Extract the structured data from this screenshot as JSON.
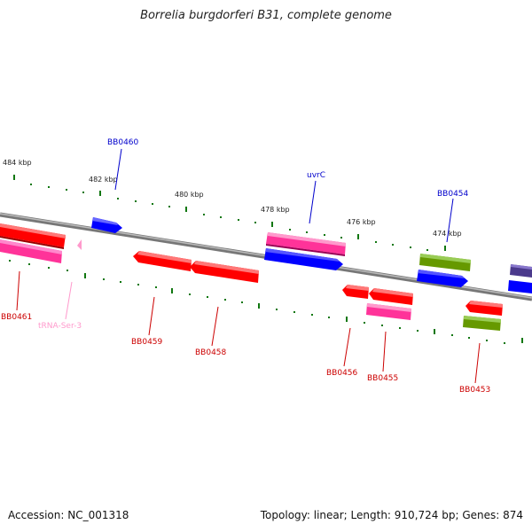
{
  "title": "Borrelia burgdorferi B31, complete genome",
  "footer": {
    "accession": "Accession: NC_001318",
    "summary": "Topology: linear; Length: 910,724 bp; Genes: 874"
  },
  "ticks": [
    "484 kbp",
    "482 kbp",
    "480 kbp",
    "478 kbp",
    "476 kbp",
    "474 kbp"
  ],
  "gene_labels": {
    "bb0460": "BB0460",
    "uvrc": "uvrC",
    "bb0454": "BB0454",
    "bb0461": "BB0461",
    "trna_ser3": "tRNA-Ser-3",
    "bb0459": "BB0459",
    "bb0458": "BB0458",
    "bb0456": "BB0456",
    "bb0455": "BB0455",
    "bb0453": "BB0453"
  },
  "colors": {
    "cds_red": "#ff0000",
    "cds_pink": "#ff3399",
    "cds_blue": "#0000ff",
    "cds_green": "#669900",
    "cds_purple": "#4b3a8c",
    "trna_pink": "#ff99cc",
    "label_blue": "#0000cc",
    "label_red": "#cc0000",
    "tick_green": "#117711",
    "backbone": "#888888"
  }
}
